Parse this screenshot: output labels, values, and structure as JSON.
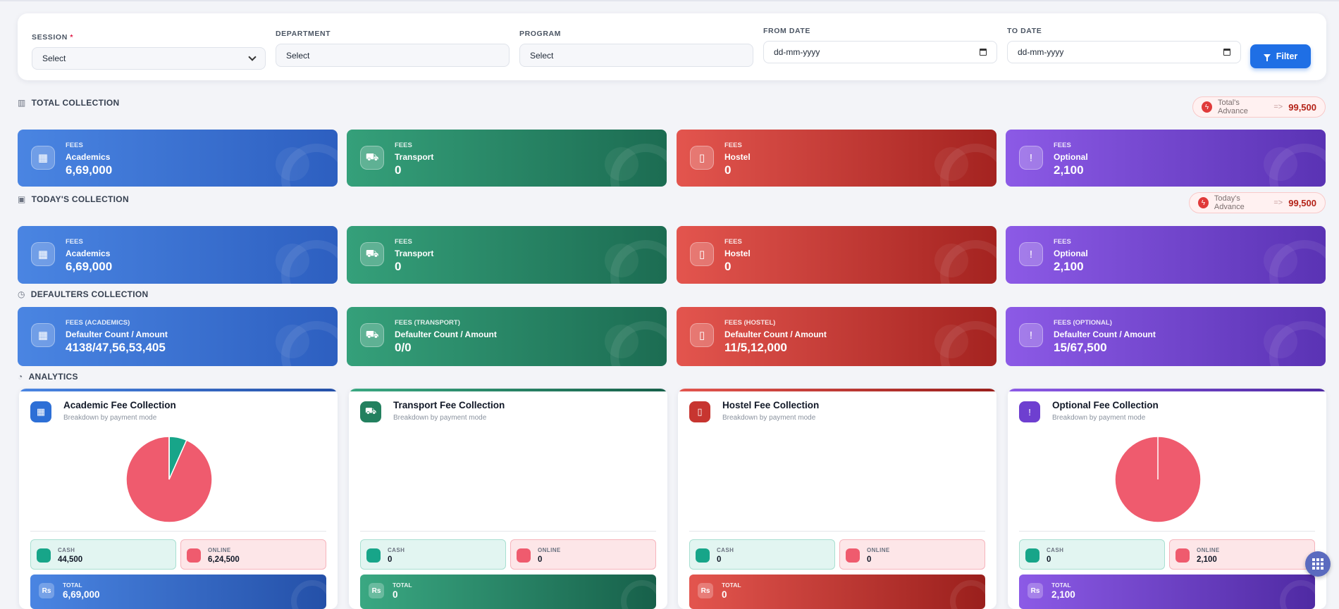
{
  "filters": {
    "session": {
      "label": "SESSION",
      "required_mark": "*",
      "value": "Select"
    },
    "department": {
      "label": "DEPARTMENT",
      "value": "Select"
    },
    "program": {
      "label": "PROGRAM",
      "value": "Select"
    },
    "from_date": {
      "label": "FROM DATE",
      "value": "dd-mm-yyyy"
    },
    "to_date": {
      "label": "TO DATE",
      "value": "dd-mm-yyyy"
    },
    "filter_button": "Filter"
  },
  "total_collection": {
    "title": "TOTAL COLLECTION",
    "advance": {
      "label": "Total's Advance",
      "arrow": "=>",
      "amount": "99,500"
    },
    "cards": [
      {
        "kicker": "FEES",
        "name": "Academics",
        "value": "6,69,000",
        "icon": "calendar-icon",
        "color": "blue"
      },
      {
        "kicker": "FEES",
        "name": "Transport",
        "value": "0",
        "icon": "bus-icon",
        "color": "green"
      },
      {
        "kicker": "FEES",
        "name": "Hostel",
        "value": "0",
        "icon": "building-icon",
        "color": "red"
      },
      {
        "kicker": "FEES",
        "name": "Optional",
        "value": "2,100",
        "icon": "info-icon",
        "color": "purple"
      }
    ]
  },
  "todays_collection": {
    "title": "TODAY'S COLLECTION",
    "advance": {
      "label": "Today's Advance",
      "arrow": "=>",
      "amount": "99,500"
    },
    "cards": [
      {
        "kicker": "FEES",
        "name": "Academics",
        "value": "6,69,000"
      },
      {
        "kicker": "FEES",
        "name": "Transport",
        "value": "0"
      },
      {
        "kicker": "FEES",
        "name": "Hostel",
        "value": "0"
      },
      {
        "kicker": "FEES",
        "name": "Optional",
        "value": "2,100"
      }
    ]
  },
  "defaulters_collection": {
    "title": "DEFAULTERS COLLECTION",
    "cards": [
      {
        "kicker": "FEES (ACADEMICS)",
        "name": "Defaulter Count / Amount",
        "value": "4138/47,56,53,405"
      },
      {
        "kicker": "FEES (TRANSPORT)",
        "name": "Defaulter Count / Amount",
        "value": "0/0"
      },
      {
        "kicker": "FEES (HOSTEL)",
        "name": "Defaulter Count / Amount",
        "value": "11/5,12,000"
      },
      {
        "kicker": "FEES (OPTIONAL)",
        "name": "Defaulter Count / Amount",
        "value": "15/67,500"
      }
    ]
  },
  "analytics": {
    "title": "ANALYTICS",
    "cards": [
      {
        "title": "Academic Fee Collection",
        "subtitle": "Breakdown by payment mode",
        "cash_label": "CASH",
        "cash": "44,500",
        "online_label": "ONLINE",
        "online": "6,24,500",
        "total_label": "TOTAL",
        "total": "6,69,000"
      },
      {
        "title": "Transport Fee Collection",
        "subtitle": "Breakdown by payment mode",
        "cash_label": "CASH",
        "cash": "0",
        "online_label": "ONLINE",
        "online": "0",
        "total_label": "TOTAL",
        "total": "0"
      },
      {
        "title": "Hostel Fee Collection",
        "subtitle": "Breakdown by payment mode",
        "cash_label": "CASH",
        "cash": "0",
        "online_label": "ONLINE",
        "online": "0",
        "total_label": "TOTAL",
        "total": "0"
      },
      {
        "title": "Optional Fee Collection",
        "subtitle": "Breakdown by payment mode",
        "cash_label": "CASH",
        "cash": "0",
        "online_label": "ONLINE",
        "online": "2,100",
        "total_label": "TOTAL",
        "total": "2,100"
      }
    ],
    "rupee_glyph": "Rs"
  },
  "chart_data": [
    {
      "type": "pie",
      "categories": [
        "Cash",
        "Online"
      ],
      "values": [
        44500,
        624500
      ],
      "colors": [
        "#17a589",
        "#ef5b6e"
      ]
    },
    {
      "type": "pie",
      "categories": [
        "Cash",
        "Online"
      ],
      "values": [
        0,
        2100
      ],
      "colors": [
        "#17a589",
        "#ef5b6e"
      ]
    }
  ],
  "colors": {
    "blue": "#2d5fc0",
    "green": "#1c6c52",
    "red": "#a42320",
    "purple": "#5a33b4",
    "accent": "#1f6fe5"
  }
}
